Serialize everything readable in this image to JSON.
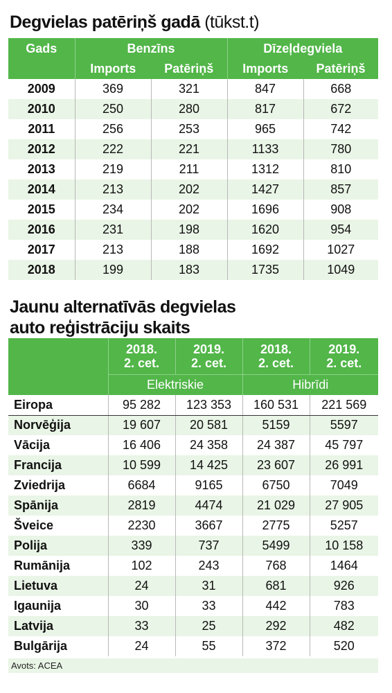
{
  "fuel": {
    "title": "Degvielas patēriņš gadā",
    "unit": "(tūkst.t)",
    "col_year": "Gads",
    "group_petrol": "Benzīns",
    "group_diesel": "Dīzeļdegviela",
    "sub_import": "Imports",
    "sub_consumption": "Patēriņš"
  },
  "registrations": {
    "title_line1": "Jaunu alternatīvās degvielas",
    "title_line2": "auto reģistrāciju skaits",
    "periods": [
      "2018.\n2. cet.",
      "2019.\n2. cet.",
      "2018.\n2. cet.",
      "2019.\n2. cet."
    ],
    "group_electric": "Elektriskie",
    "group_hybrid": "Hibrīdi"
  },
  "source": "Avots: ACEA",
  "colors": {
    "header_green": "#52b649",
    "stripe": "#e9f5e6"
  },
  "chart_data": [
    {
      "type": "table",
      "title": "Degvielas patēriņš gadā (tūkst.t)",
      "columns": [
        "Gads",
        "Benzīns Imports",
        "Benzīns Patēriņš",
        "Dīzeļdegviela Imports",
        "Dīzeļdegviela Patēriņš"
      ],
      "rows": [
        [
          "2009",
          "369",
          "321",
          "847",
          "668"
        ],
        [
          "2010",
          "250",
          "280",
          "817",
          "672"
        ],
        [
          "2011",
          "256",
          "253",
          "965",
          "742"
        ],
        [
          "2012",
          "222",
          "221",
          "1133",
          "780"
        ],
        [
          "2013",
          "219",
          "211",
          "1312",
          "810"
        ],
        [
          "2014",
          "213",
          "202",
          "1427",
          "857"
        ],
        [
          "2015",
          "234",
          "202",
          "1696",
          "908"
        ],
        [
          "2016",
          "231",
          "198",
          "1620",
          "954"
        ],
        [
          "2017",
          "213",
          "188",
          "1692",
          "1027"
        ],
        [
          "2018",
          "199",
          "183",
          "1735",
          "1049"
        ]
      ]
    },
    {
      "type": "table",
      "title": "Jaunu alternatīvās degvielas auto reģistrāciju skaits",
      "columns": [
        "",
        "Elektriskie 2018. 2. cet.",
        "Elektriskie 2019. 2. cet.",
        "Hibrīdi 2018. 2. cet.",
        "Hibrīdi 2019. 2. cet."
      ],
      "rows": [
        [
          "Eiropa",
          "95 282",
          "123 353",
          "160 531",
          "221 569"
        ],
        [
          "Norvēģija",
          "19 607",
          "20 581",
          "5159",
          "5597"
        ],
        [
          "Vācija",
          "16 406",
          "24 358",
          "24 387",
          "45 797"
        ],
        [
          "Francija",
          "10 599",
          "14 425",
          "23 607",
          "26 991"
        ],
        [
          "Zviedrija",
          "6684",
          "9165",
          "6750",
          "7049"
        ],
        [
          "Spānija",
          "2819",
          "4474",
          "21 029",
          "27 905"
        ],
        [
          "Šveice",
          "2230",
          "3667",
          "2775",
          "5257"
        ],
        [
          "Polija",
          "339",
          "737",
          "5499",
          "10 158"
        ],
        [
          "Rumānija",
          "102",
          "243",
          "768",
          "1464"
        ],
        [
          "Lietuva",
          "24",
          "31",
          "681",
          "926"
        ],
        [
          "Igaunija",
          "30",
          "33",
          "442",
          "783"
        ],
        [
          "Latvija",
          "33",
          "25",
          "292",
          "482"
        ],
        [
          "Bulgārija",
          "24",
          "55",
          "372",
          "520"
        ]
      ]
    }
  ]
}
